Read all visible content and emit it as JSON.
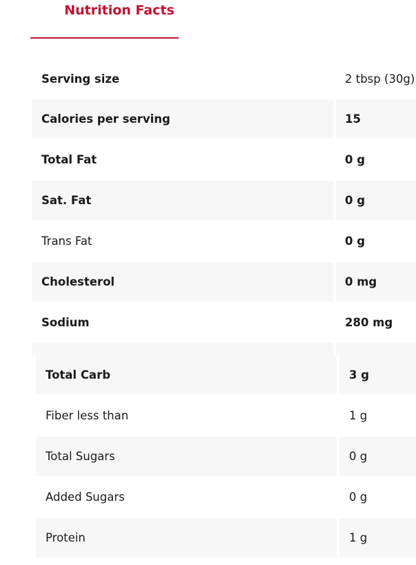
{
  "tab": {
    "title": "Nutrition Facts"
  },
  "table1": {
    "rows": [
      [
        "Serving size",
        "2 tbsp (30g)"
      ],
      [
        "Calories per serving",
        "15"
      ],
      [
        "Total Fat",
        "0 g"
      ],
      [
        "Sat. Fat",
        "0 g"
      ],
      [
        "Trans Fat",
        "0 g"
      ],
      [
        "Cholesterol",
        "0 mg"
      ],
      [
        "Sodium",
        "280 mg"
      ]
    ]
  },
  "table2": {
    "rows": [
      [
        "Total Carb",
        "3 g"
      ],
      [
        "Fiber less than",
        "1 g"
      ],
      [
        "Total Sugars",
        "0 g"
      ],
      [
        "Added Sugars",
        "0 g"
      ],
      [
        "Protein",
        "1 g"
      ]
    ]
  }
}
